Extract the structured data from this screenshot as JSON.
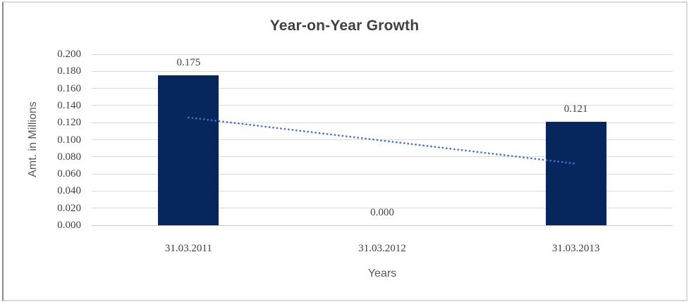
{
  "chart_data": {
    "type": "bar",
    "title": "Year-on-Year Growth",
    "categories": [
      "31.03.2011",
      "31.03.2012",
      "31.03.2013"
    ],
    "values": [
      0.175,
      0.0,
      0.121
    ],
    "data_labels": [
      "0.175",
      "0.000",
      "0.121"
    ],
    "xlabel": "Years",
    "ylabel": "Amt. in Millions",
    "ylim": [
      0,
      0.2
    ],
    "ytick_step": 0.02,
    "ytick_labels": [
      "0.000",
      "0.020",
      "0.040",
      "0.060",
      "0.080",
      "0.100",
      "0.120",
      "0.140",
      "0.160",
      "0.180",
      "0.200"
    ],
    "grid": true,
    "legend_position": "none",
    "trendline": {
      "type": "linear",
      "style": "dotted",
      "start_value": 0.126,
      "end_value": 0.072
    },
    "colors": {
      "bar": "#07265E",
      "trendline": "#4472C4",
      "gridline": "#D9D9D9",
      "axis_line": "#C6C6C6",
      "tick_label": "#3F3F3F",
      "data_label": "#3F3F3F",
      "axis_title": "#595959",
      "title": "#404040",
      "background": "#FFFFFF"
    }
  }
}
